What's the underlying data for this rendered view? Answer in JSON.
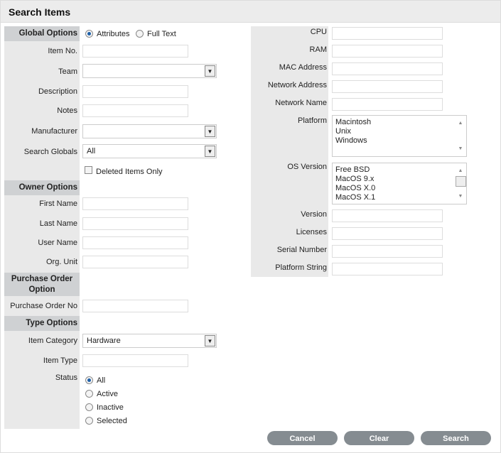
{
  "title": "Search Items",
  "global": {
    "header": "Global Options",
    "attributes": "Attributes",
    "full_text": "Full Text",
    "item_no": "Item No.",
    "team": "Team",
    "description": "Description",
    "notes": "Notes",
    "manufacturer": "Manufacturer",
    "search_globals": "Search Globals",
    "search_globals_value": "All",
    "deleted_only": "Deleted Items Only"
  },
  "owner": {
    "header": "Owner Options",
    "first_name": "First Name",
    "last_name": "Last Name",
    "user_name": "User Name",
    "org_unit": "Org. Unit"
  },
  "po": {
    "header_1": "Purchase Order",
    "header_2": "Option",
    "po_no": "Purchase Order No"
  },
  "type": {
    "header": "Type Options",
    "item_category": "Item Category",
    "item_category_value": "Hardware",
    "item_type": "Item Type",
    "status": "Status",
    "status_options": [
      "All",
      "Active",
      "Inactive",
      "Selected"
    ]
  },
  "attrs": {
    "cpu": "CPU",
    "ram": "RAM",
    "mac": "MAC Address",
    "net_addr": "Network Address",
    "net_name": "Network Name",
    "platform": "Platform",
    "platform_options": [
      "Macintosh",
      "Unix",
      "Windows"
    ],
    "os_version": "OS Version",
    "os_options": [
      "Free BSD",
      "MacOS 9.x",
      "MacOS X.0",
      "MacOS X.1"
    ],
    "version": "Version",
    "licenses": "Licenses",
    "serial": "Serial Number",
    "platform_string": "Platform String"
  },
  "buttons": {
    "cancel": "Cancel",
    "clear": "Clear",
    "search": "Search"
  }
}
